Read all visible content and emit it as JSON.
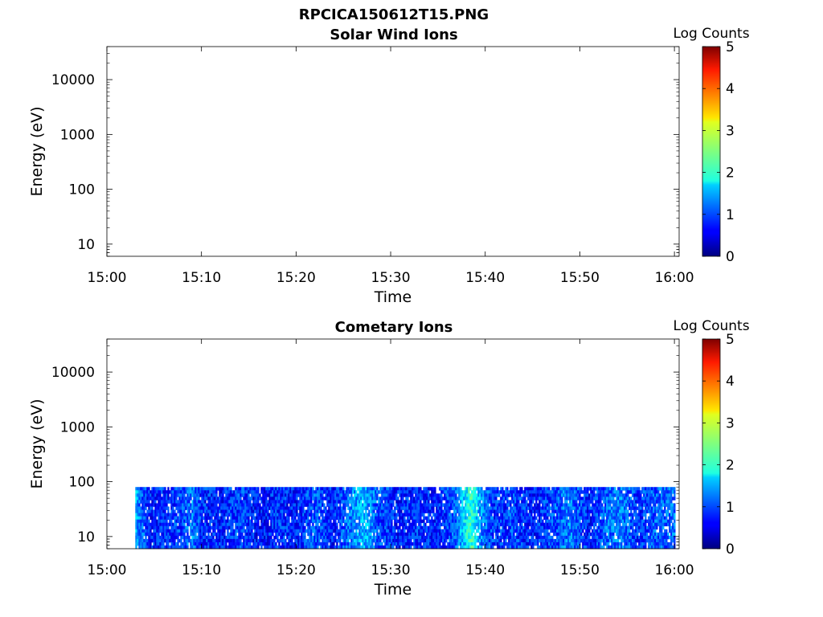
{
  "figure": {
    "file_title": "RPCICA150612T15.PNG"
  },
  "chart_data": [
    {
      "type": "heatmap",
      "title": "Solar Wind Ions",
      "xlabel": "Time",
      "ylabel": "Energy (eV)",
      "x_ticks": [
        "15:00",
        "15:10",
        "15:20",
        "15:30",
        "15:40",
        "15:50",
        "16:00"
      ],
      "x_range_minutes": [
        0,
        60.5
      ],
      "y_scale": "log",
      "y_ticks": [
        "10",
        "100",
        "1000",
        "10000"
      ],
      "y_range": [
        6,
        40000
      ],
      "colorbar": {
        "label": "Log Counts",
        "ticks": [
          "0",
          "1",
          "2",
          "3",
          "4",
          "5"
        ],
        "range": [
          0,
          5
        ],
        "colormap": "jet"
      },
      "data": []
    },
    {
      "type": "heatmap",
      "title": "Cometary Ions",
      "xlabel": "Time",
      "ylabel": "Energy (eV)",
      "x_ticks": [
        "15:00",
        "15:10",
        "15:20",
        "15:30",
        "15:40",
        "15:50",
        "16:00"
      ],
      "x_range_minutes": [
        0,
        60.5
      ],
      "y_scale": "log",
      "y_ticks": [
        "10",
        "100",
        "1000",
        "10000"
      ],
      "y_range": [
        6,
        40000
      ],
      "colorbar": {
        "label": "Log Counts",
        "ticks": [
          "0",
          "1",
          "2",
          "3",
          "4",
          "5"
        ],
        "range": [
          0,
          5
        ],
        "colormap": "jet"
      },
      "data_extent": {
        "t_start": "15:03",
        "t_end": "16:00",
        "energy_min_eV": 6,
        "energy_max_eV": 80
      },
      "time_profile": [
        {
          "t": 3.0,
          "v": 1.6
        },
        {
          "t": 3.5,
          "v": 1.2
        },
        {
          "t": 4.5,
          "v": 0.8
        },
        {
          "t": 6,
          "v": 0.9
        },
        {
          "t": 8,
          "v": 1.0
        },
        {
          "t": 9,
          "v": 1.3
        },
        {
          "t": 10,
          "v": 0.9
        },
        {
          "t": 12,
          "v": 0.8
        },
        {
          "t": 14,
          "v": 1.0
        },
        {
          "t": 16,
          "v": 0.7
        },
        {
          "t": 18,
          "v": 0.9
        },
        {
          "t": 20,
          "v": 0.8
        },
        {
          "t": 22,
          "v": 1.1
        },
        {
          "t": 24,
          "v": 0.8
        },
        {
          "t": 27,
          "v": 1.6
        },
        {
          "t": 29,
          "v": 1.0
        },
        {
          "t": 31,
          "v": 0.8
        },
        {
          "t": 33,
          "v": 0.9
        },
        {
          "t": 35,
          "v": 0.8
        },
        {
          "t": 37,
          "v": 1.2
        },
        {
          "t": 38.5,
          "v": 2.2
        },
        {
          "t": 39.5,
          "v": 1.4
        },
        {
          "t": 41,
          "v": 0.9
        },
        {
          "t": 43,
          "v": 1.0
        },
        {
          "t": 45,
          "v": 0.8
        },
        {
          "t": 47,
          "v": 1.0
        },
        {
          "t": 49,
          "v": 1.3
        },
        {
          "t": 51,
          "v": 0.8
        },
        {
          "t": 53,
          "v": 1.2
        },
        {
          "t": 54.5,
          "v": 1.3
        },
        {
          "t": 56,
          "v": 0.9
        },
        {
          "t": 58,
          "v": 1.1
        },
        {
          "t": 60,
          "v": 1.2
        }
      ]
    }
  ]
}
